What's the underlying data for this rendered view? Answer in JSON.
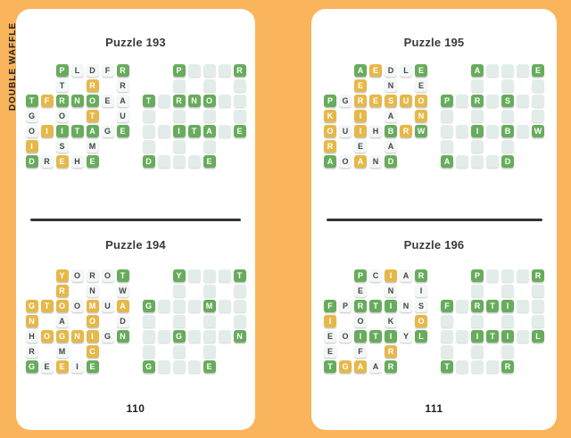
{
  "spine_label": "DOUBLE WAFFLE",
  "colors": {
    "background": "#F9B45C",
    "card": "#FFFFFF",
    "green": "#67AC5C",
    "yellow": "#E5B849",
    "white_tile": "#F3F7F6",
    "empty_tile": "#E2EDEA",
    "ink": "#3A3A3A"
  },
  "tile_states_legend": "g=green tile, y=yellow tile, w=white lettered tile, e=empty pale tile, .=no cell",
  "pages": [
    {
      "page_number": "110",
      "puzzles": [
        {
          "title": "Puzzle 193",
          "clue_grid": {
            "rows": [
              "..PLDFR",
              "..T.R.R",
              "TFRNOEA",
              "G.O.T.U",
              "OIITAGE",
              "I.S.M..",
              "DREHE.."
            ],
            "states": [
              "..gwwwg",
              "..w.y.w",
              "gygggww",
              "w.w.y.w",
              "wygggwg",
              "y.w.w..",
              "gwywg.."
            ]
          },
          "answer_grid": {
            "rows": [
              "..P   R",
              ".. . . ",
              "T RNO  ",
              " . . . ",
              "  ITA E",
              " . . ..",
              "D   E.."
            ],
            "states": [
              "..geeeg",
              "..e.e.e",
              "gegggee",
              "e.e.e.e",
              "eegggeg",
              "e.e.e..",
              "geeeg.."
            ]
          }
        },
        {
          "title": "Puzzle 194",
          "clue_grid": {
            "rows": [
              "..YOROT",
              "..R.N.W",
              "GTOOMUA",
              "N.A.O.D",
              "HOGNIGN",
              "R.M.C..",
              "GEEIE.."
            ],
            "states": [
              "..ywwwg",
              "..y.w.w",
              "yyywywy",
              "y.w.y.w",
              "wyyyywg",
              "w.w.y..",
              "gwywg.."
            ]
          },
          "answer_grid": {
            "rows": [
              "..Y   T",
              ".. . . ",
              "G   M  ",
              " . . . ",
              "  G   N",
              " . . ..",
              "G   E.."
            ],
            "states": [
              "..geeeg",
              "..e.e.e",
              "geeegee",
              "e.e.e.e",
              "eegeeeg",
              "e.e.e..",
              "geeeg.."
            ]
          }
        }
      ]
    },
    {
      "page_number": "111",
      "puzzles": [
        {
          "title": "Puzzle 195",
          "clue_grid": {
            "rows": [
              "..AEDLE",
              "..E.N.E",
              "PGRESUO",
              "K.I.A.N",
              "OUIHBRW",
              "R.E.A..",
              "AOAND.."
            ],
            "states": [
              "..gywwg",
              "..y.w.w",
              "gwyyyyy",
              "y.y.w.y",
              "ywywgyg",
              "y.w.w..",
              "gwywg.."
            ]
          },
          "answer_grid": {
            "rows": [
              "..A   E",
              ".. . . ",
              "P R S  ",
              " . . . ",
              "  I B W",
              " . . ..",
              "A   D.."
            ],
            "states": [
              "..geeeg",
              "..e.e.e",
              "gegegee",
              "e.e.e.e",
              "eegegeg",
              "e.e.e..",
              "geeeg.."
            ]
          }
        },
        {
          "title": "Puzzle 196",
          "clue_grid": {
            "rows": [
              "..PCIAR",
              "..E.N.I",
              "FPRTINS",
              "I.O.K.O",
              "EOITIYL",
              "E.F.R..",
              "TGAAR.."
            ],
            "states": [
              "..gwywg",
              "..w.w.w",
              "gwgggww",
              "y.w.w.y",
              "wwgggwg",
              "w.w.y..",
              "gyywg.."
            ]
          },
          "answer_grid": {
            "rows": [
              "..P   R",
              ".. . . ",
              "F RTI  ",
              " . . . ",
              "  ITI L",
              " . . ..",
              "T   R.."
            ],
            "states": [
              "..geeeg",
              "..e.e.e",
              "gegggee",
              "e.e.e.e",
              "eegggeg",
              "e.e.e..",
              "geeeg.."
            ]
          }
        }
      ]
    }
  ]
}
